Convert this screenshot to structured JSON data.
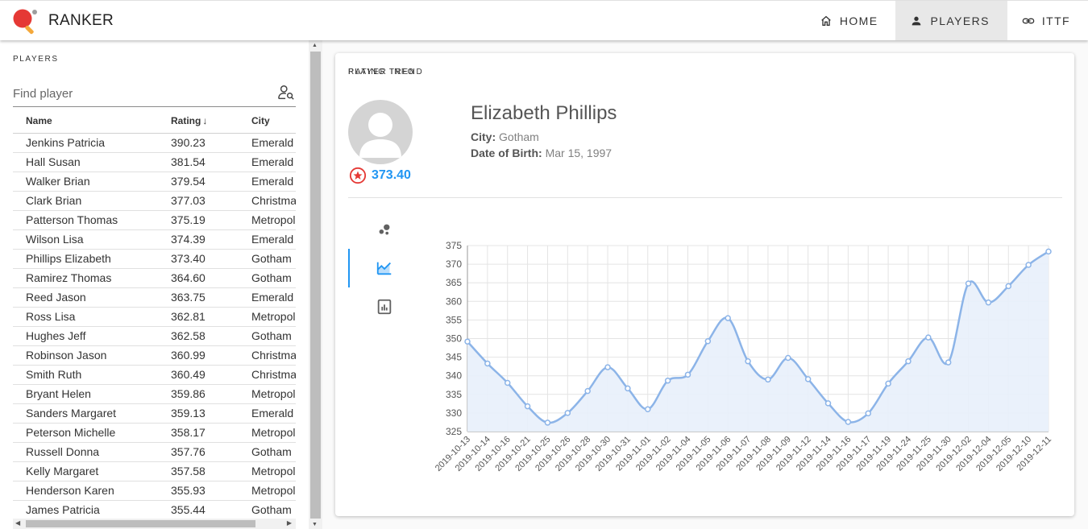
{
  "app": {
    "title": "RANKER"
  },
  "nav": [
    {
      "label": "HOME",
      "icon": "home-icon"
    },
    {
      "label": "PLAYERS",
      "icon": "person-icon",
      "active": true
    },
    {
      "label": "ITTF",
      "icon": "link-icon"
    }
  ],
  "players_panel": {
    "title": "PLAYERS",
    "search_placeholder": "Find player",
    "columns": {
      "name": "Name",
      "rating": "Rating",
      "city": "City"
    },
    "rows": [
      {
        "name": "Jenkins Patricia",
        "rating": "390.23",
        "city": "Emerald"
      },
      {
        "name": "Hall Susan",
        "rating": "381.54",
        "city": "Emerald"
      },
      {
        "name": "Walker Brian",
        "rating": "379.54",
        "city": "Emerald"
      },
      {
        "name": "Clark Brian",
        "rating": "377.03",
        "city": "Christma"
      },
      {
        "name": "Patterson Thomas",
        "rating": "375.19",
        "city": "Metropol"
      },
      {
        "name": "Wilson Lisa",
        "rating": "374.39",
        "city": "Emerald"
      },
      {
        "name": "Phillips Elizabeth",
        "rating": "373.40",
        "city": "Gotham"
      },
      {
        "name": "Ramirez Thomas",
        "rating": "364.60",
        "city": "Gotham"
      },
      {
        "name": "Reed Jason",
        "rating": "363.75",
        "city": "Emerald"
      },
      {
        "name": "Ross Lisa",
        "rating": "362.81",
        "city": "Metropol"
      },
      {
        "name": "Hughes Jeff",
        "rating": "362.58",
        "city": "Gotham"
      },
      {
        "name": "Robinson Jason",
        "rating": "360.99",
        "city": "Christma"
      },
      {
        "name": "Smith Ruth",
        "rating": "360.49",
        "city": "Christma"
      },
      {
        "name": "Bryant Helen",
        "rating": "359.86",
        "city": "Metropol"
      },
      {
        "name": "Sanders Margaret",
        "rating": "359.13",
        "city": "Emerald"
      },
      {
        "name": "Peterson Michelle",
        "rating": "358.17",
        "city": "Metropol"
      },
      {
        "name": "Russell Donna",
        "rating": "357.76",
        "city": "Gotham"
      },
      {
        "name": "Kelly Margaret",
        "rating": "357.58",
        "city": "Metropol"
      },
      {
        "name": "Henderson Karen",
        "rating": "355.93",
        "city": "Metropol"
      },
      {
        "name": "James Patricia",
        "rating": "355.44",
        "city": "Gotham"
      }
    ]
  },
  "player_info": {
    "title": "PLAYER INFO",
    "name": "Elizabeth Phillips",
    "rating": "373.40",
    "city_label": "City:",
    "city": "Gotham",
    "dob_label": "Date of Birth:",
    "dob": "Mar 15, 1997",
    "tabs": [
      {
        "icon": "bubble-chart-icon"
      },
      {
        "icon": "line-chart-icon",
        "active": true
      },
      {
        "icon": "report-chart-icon"
      }
    ],
    "trend_title": "RATING TREND"
  },
  "colors": {
    "accent": "#2196f3",
    "line": "#8cb4e8",
    "area": "#e8f0fb",
    "badge": "#e53935"
  },
  "chart_data": {
    "type": "area",
    "x": [
      "2019-10-13",
      "2019-10-14",
      "2019-10-16",
      "2019-10-21",
      "2019-10-25",
      "2019-10-26",
      "2019-10-28",
      "2019-10-30",
      "2019-10-31",
      "2019-11-01",
      "2019-11-02",
      "2019-11-04",
      "2019-11-05",
      "2019-11-06",
      "2019-11-07",
      "2019-11-08",
      "2019-11-09",
      "2019-11-12",
      "2019-11-14",
      "2019-11-16",
      "2019-11-17",
      "2019-11-19",
      "2019-11-24",
      "2019-11-25",
      "2019-11-30",
      "2019-12-02",
      "2019-12-04",
      "2019-12-05",
      "2019-12-10",
      "2019-12-11"
    ],
    "values": [
      349.2,
      343.3,
      338.1,
      331.8,
      327.4,
      330.0,
      335.9,
      342.3,
      336.6,
      331.0,
      338.7,
      340.3,
      349.3,
      355.5,
      343.9,
      339.0,
      344.8,
      339.1,
      332.6,
      327.6,
      329.9,
      337.9,
      343.9,
      350.3,
      343.6,
      364.8,
      359.7,
      364.1,
      369.8,
      373.4
    ],
    "ylim": [
      325,
      375
    ],
    "yticks": [
      325,
      330,
      335,
      340,
      345,
      350,
      355,
      360,
      365,
      370,
      375
    ],
    "grid": true
  }
}
